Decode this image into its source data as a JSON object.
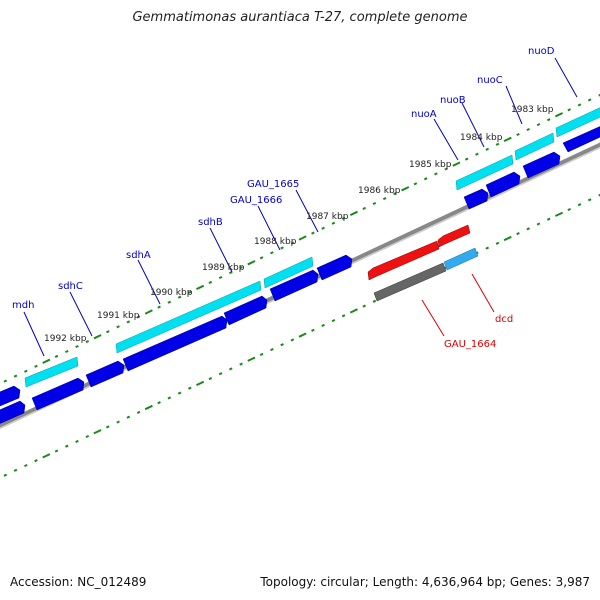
{
  "title": "Gemmatimonas aurantiaca T-27, complete genome",
  "footer": {
    "accession": "Accession: NC_012489",
    "summary": "Topology: circular; Length: 4,636,964 bp; Genes: 3,987"
  },
  "kbp_labels": [
    "1983 kbp",
    "1984 kbp",
    "1985 kbp",
    "1986 kbp",
    "1987 kbp",
    "1988 kbp",
    "1989 kbp",
    "1990 kbp",
    "1991 kbp",
    "1992 kbp"
  ],
  "gene_labels": [
    "nuoD",
    "nuoC",
    "nuoB",
    "nuoA",
    "GAU_1665",
    "GAU_1666",
    "sdhB",
    "sdhA",
    "sdhC",
    "mdh",
    "dcd",
    "GAU_1664"
  ],
  "colors": {
    "cds": "#0000e6",
    "gene": "#00e0f0",
    "label_blue": "#0000cc",
    "label_red": "#dd0000",
    "tick_green": "#1a8a1a",
    "backbone": "#888888",
    "red_feature": "#ee1111",
    "grey_feature": "#666666",
    "lightblue_feature": "#33aaee"
  }
}
